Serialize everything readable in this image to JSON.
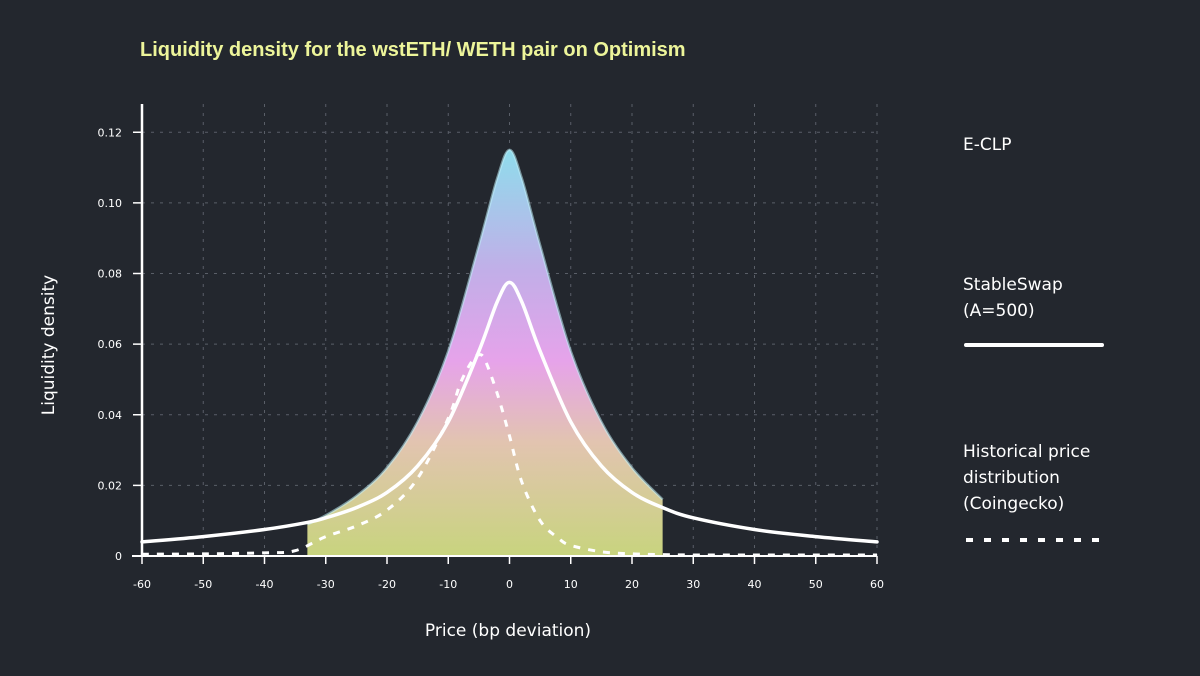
{
  "colors": {
    "background": "#23272e",
    "title": "#edf59a",
    "grid": "#5a5f68",
    "white": "#ffffff",
    "gradient_top": "#8fdcec",
    "gradient_mid": "#e6a3ea",
    "gradient_low": "#e8d0a0",
    "gradient_bottom": "#c8d47e"
  },
  "chart_data": {
    "type": "line",
    "title": "Liquidity density for the wstETH/ WETH pair on Optimism",
    "xlabel": "Price (bp deviation)",
    "ylabel": "Liquidity density",
    "xlim": [
      -60,
      60
    ],
    "ylim": [
      0,
      0.128
    ],
    "x_ticks": [
      "-60",
      "-50",
      "-40",
      "-30",
      "-20",
      "-10",
      "0",
      "10",
      "20",
      "30",
      "40",
      "50",
      "60"
    ],
    "y_ticks": [
      "0",
      "0.02",
      "0.04",
      "0.06",
      "0.08",
      "0.10",
      "0.12"
    ],
    "grid": true,
    "legend_position": "right",
    "series": [
      {
        "name": "E-CLP",
        "style": "gradient-filled area, bounded between x=-33 and x=25",
        "x": [
          -33,
          -30,
          -25,
          -20,
          -15,
          -10,
          -5,
          -2,
          0,
          2,
          5,
          10,
          15,
          20,
          25
        ],
        "y": [
          0.009,
          0.0115,
          0.017,
          0.025,
          0.038,
          0.058,
          0.088,
          0.107,
          0.115,
          0.107,
          0.088,
          0.058,
          0.038,
          0.025,
          0.016
        ]
      },
      {
        "name": "StableSwap (A=500)",
        "style": "solid white line",
        "x": [
          -60,
          -50,
          -40,
          -33,
          -30,
          -25,
          -20,
          -15,
          -10,
          -5,
          -2,
          0,
          2,
          5,
          10,
          15,
          20,
          25,
          30,
          40,
          50,
          60
        ],
        "y": [
          0.004,
          0.0055,
          0.0075,
          0.0095,
          0.0108,
          0.0137,
          0.018,
          0.0255,
          0.038,
          0.058,
          0.072,
          0.0775,
          0.072,
          0.058,
          0.038,
          0.0255,
          0.018,
          0.0137,
          0.0108,
          0.0075,
          0.0055,
          0.004
        ]
      },
      {
        "name": "Historical price distribution (Coingecko)",
        "style": "dashed white line",
        "x": [
          -60,
          -50,
          -40,
          -35,
          -30,
          -25,
          -20,
          -15,
          -10,
          -8,
          -6,
          -5,
          -4,
          -2,
          0,
          2,
          5,
          8,
          10,
          15,
          20,
          25,
          30,
          40,
          50,
          60
        ],
        "y": [
          0.0005,
          0.0006,
          0.0009,
          0.0015,
          0.0055,
          0.0085,
          0.013,
          0.022,
          0.039,
          0.049,
          0.0555,
          0.057,
          0.0555,
          0.046,
          0.034,
          0.021,
          0.01,
          0.005,
          0.003,
          0.0012,
          0.0006,
          0.0004,
          0.0003,
          0.0003,
          0.0003,
          0.0003
        ]
      }
    ],
    "annotations": [
      {
        "type": "vertical-line",
        "x": -33
      },
      {
        "type": "vertical-line",
        "x": 25
      }
    ]
  },
  "legend": {
    "eclp": {
      "line1": "E-CLP",
      "swatch": "gradient-line"
    },
    "stableswap": {
      "line1": "StableSwap",
      "line2": "(A=500)",
      "swatch": "solid-line"
    },
    "historical": {
      "line1": "Historical price",
      "line2": "distribution",
      "line3": "(Coingecko)",
      "swatch": "dashed-line"
    }
  }
}
